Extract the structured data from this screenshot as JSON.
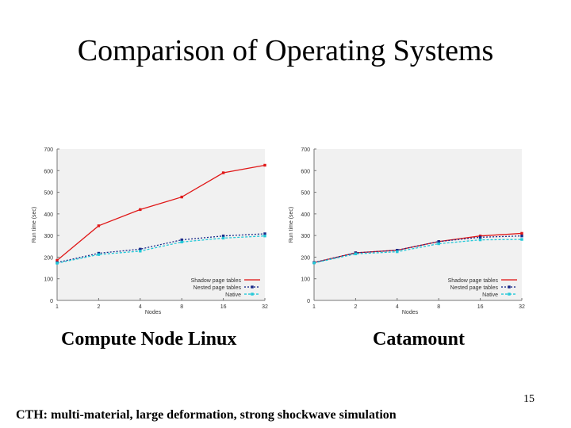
{
  "slide": {
    "title": "Comparison of Operating Systems",
    "captions": [
      "Compute Node Linux",
      "Catamount"
    ],
    "slide_number": "15",
    "footer": "CTH: multi-material, large deformation, strong shockwave simulation"
  },
  "chart_data": [
    {
      "type": "line",
      "xlabel": "Nodes",
      "ylabel": "Run time (sec)",
      "x": [
        "1",
        "2",
        "4",
        "8",
        "16",
        "32"
      ],
      "ylim": [
        0,
        700
      ],
      "yticks": [
        0,
        100,
        200,
        300,
        400,
        500,
        600,
        700
      ],
      "grid": false,
      "legend_position": "bottom-right",
      "series": [
        {
          "name": "Shadow page tables",
          "color": "#e01818",
          "values": [
            185,
            345,
            420,
            478,
            590,
            625
          ]
        },
        {
          "name": "Nested page tables",
          "color": "#1a2a8a",
          "values": [
            175,
            218,
            237,
            280,
            298,
            308
          ]
        },
        {
          "name": "Native",
          "color": "#22c8d8",
          "values": [
            172,
            212,
            228,
            270,
            288,
            298
          ]
        }
      ]
    },
    {
      "type": "line",
      "xlabel": "Nodes",
      "ylabel": "Run time (sec)",
      "x": [
        "1",
        "2",
        "4",
        "8",
        "16",
        "32"
      ],
      "ylim": [
        0,
        700
      ],
      "yticks": [
        0,
        100,
        200,
        300,
        400,
        500,
        600,
        700
      ],
      "grid": false,
      "legend_position": "bottom-right",
      "series": [
        {
          "name": "Shadow page tables",
          "color": "#e01818",
          "values": [
            175,
            220,
            232,
            272,
            298,
            310
          ]
        },
        {
          "name": "Nested page tables",
          "color": "#1a2a8a",
          "values": [
            175,
            220,
            232,
            272,
            292,
            298
          ]
        },
        {
          "name": "Native",
          "color": "#22c8d8",
          "values": [
            173,
            215,
            225,
            262,
            280,
            282
          ]
        }
      ]
    }
  ]
}
